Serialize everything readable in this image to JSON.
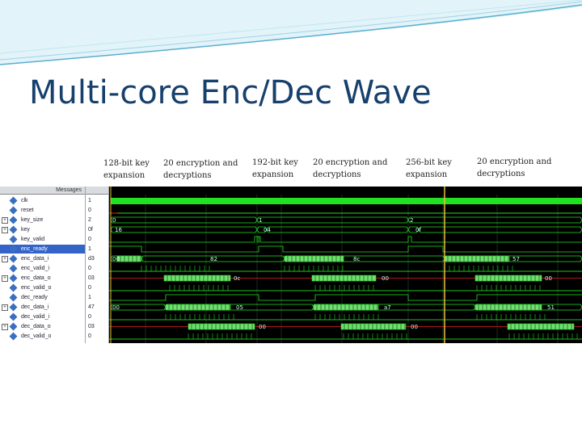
{
  "slide": {
    "title": "Multi-core Enc/Dec Wave",
    "accent_color": "#17406d",
    "header_color": "#7fd0e8"
  },
  "phases": [
    "128-bit key\nexpansion",
    "20 encryption and\ndecryptions",
    "192-bit key\nexpansion",
    "20 encryption and\ndecryptions",
    "256-bit key\nexpansion",
    "20 encryption and\ndecryptions"
  ],
  "wave_window": {
    "header_label": "Messages",
    "signals": [
      {
        "name": "clk",
        "value": "1",
        "expandable": false
      },
      {
        "name": "reset",
        "value": "0",
        "expandable": false
      },
      {
        "name": "key_size",
        "value": "2",
        "expandable": true
      },
      {
        "name": "key",
        "value": "0f",
        "expandable": true
      },
      {
        "name": "key_valid",
        "value": "0",
        "expandable": false
      },
      {
        "name": "enc_ready",
        "value": "1",
        "expandable": false
      },
      {
        "name": "enc_data_i",
        "value": "d3",
        "expandable": true
      },
      {
        "name": "enc_valid_i",
        "value": "0",
        "expandable": false
      },
      {
        "name": "enc_data_o",
        "value": "03",
        "expandable": true
      },
      {
        "name": "enc_valid_o",
        "value": "0",
        "expandable": false
      },
      {
        "name": "dec_ready",
        "value": "1",
        "expandable": false
      },
      {
        "name": "dec_data_i",
        "value": "47",
        "expandable": true
      },
      {
        "name": "dec_valid_i",
        "value": "0",
        "expandable": false
      },
      {
        "name": "dec_data_o",
        "value": "03",
        "expandable": true
      },
      {
        "name": "dec_valid_o",
        "value": "0",
        "expandable": false
      }
    ],
    "bus_labels": [
      {
        "row": 2,
        "items": [
          {
            "t": 137,
            "text": "0"
          },
          {
            "t": 318,
            "text": "1"
          },
          {
            "t": 505,
            "text": "2"
          }
        ]
      },
      {
        "row": 3,
        "items": [
          {
            "t": 140,
            "text": "16"
          },
          {
            "t": 324,
            "text": "04"
          },
          {
            "t": 512,
            "text": "0f"
          }
        ]
      },
      {
        "row": 6,
        "items": [
          {
            "t": 137,
            "text": "00"
          },
          {
            "t": 258,
            "text": "82"
          },
          {
            "t": 435,
            "text": "8c"
          },
          {
            "t": 632,
            "text": "57"
          }
        ]
      },
      {
        "row": 8,
        "items": [
          {
            "t": 287,
            "text": "0c"
          },
          {
            "t": 470,
            "text": "00"
          },
          {
            "t": 672,
            "text": "00"
          }
        ]
      },
      {
        "row": 11,
        "items": [
          {
            "t": 137,
            "text": "00"
          },
          {
            "t": 290,
            "text": "05"
          },
          {
            "t": 473,
            "text": "a7"
          },
          {
            "t": 675,
            "text": "51"
          }
        ]
      },
      {
        "row": 13,
        "items": [
          {
            "t": 318,
            "text": "00"
          },
          {
            "t": 506,
            "text": "00"
          }
        ]
      }
    ]
  }
}
